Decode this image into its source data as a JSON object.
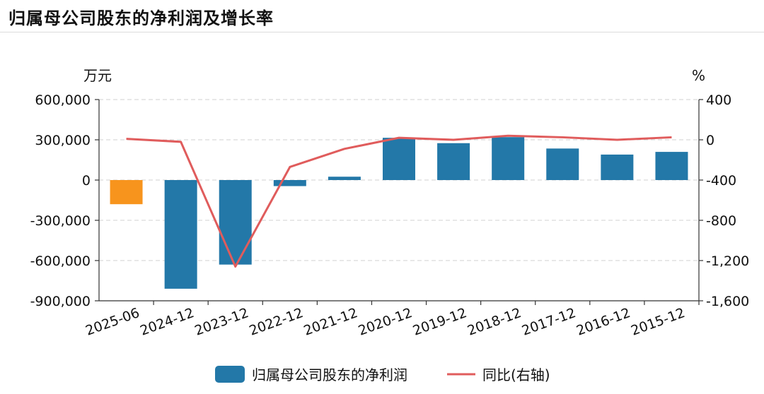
{
  "title": "归属母公司股东的净利润及增长率",
  "chart_data": {
    "type": "bar",
    "categories": [
      "2025-06",
      "2024-12",
      "2023-12",
      "2022-12",
      "2021-12",
      "2020-12",
      "2019-12",
      "2018-12",
      "2017-12",
      "2016-12",
      "2015-12"
    ],
    "series": [
      {
        "name": "归属母公司股东的净利润",
        "type": "bar",
        "axis": "left",
        "values": [
          -180000,
          -810000,
          -630000,
          -45000,
          25000,
          315000,
          275000,
          320000,
          235000,
          190000,
          210000
        ],
        "colors": [
          "#f7941d",
          "#2378a8",
          "#2378a8",
          "#2378a8",
          "#2378a8",
          "#2378a8",
          "#2378a8",
          "#2378a8",
          "#2378a8",
          "#2378a8",
          "#2378a8"
        ]
      },
      {
        "name": "同比(右轴)",
        "type": "line",
        "axis": "right",
        "color": "#e05c5c",
        "values": [
          10,
          -20,
          -1260,
          -270,
          -90,
          20,
          0,
          40,
          25,
          0,
          25
        ]
      }
    ],
    "y_left": {
      "unit": "万元",
      "range": [
        -900000,
        600000
      ],
      "ticks": [
        600000,
        300000,
        0,
        -300000,
        -600000,
        -900000
      ],
      "tick_labels": [
        "600,000",
        "300,000",
        "0",
        "-300,000",
        "-600,000",
        "-900,000"
      ]
    },
    "y_right": {
      "unit": "%",
      "range": [
        -1600,
        400
      ],
      "ticks": [
        400,
        0,
        -400,
        -800,
        -1200,
        -1600
      ],
      "tick_labels": [
        "400",
        "0",
        "-400",
        "-800",
        "-1,200",
        "-1,600"
      ]
    },
    "grid": true,
    "legend_position": "bottom"
  }
}
